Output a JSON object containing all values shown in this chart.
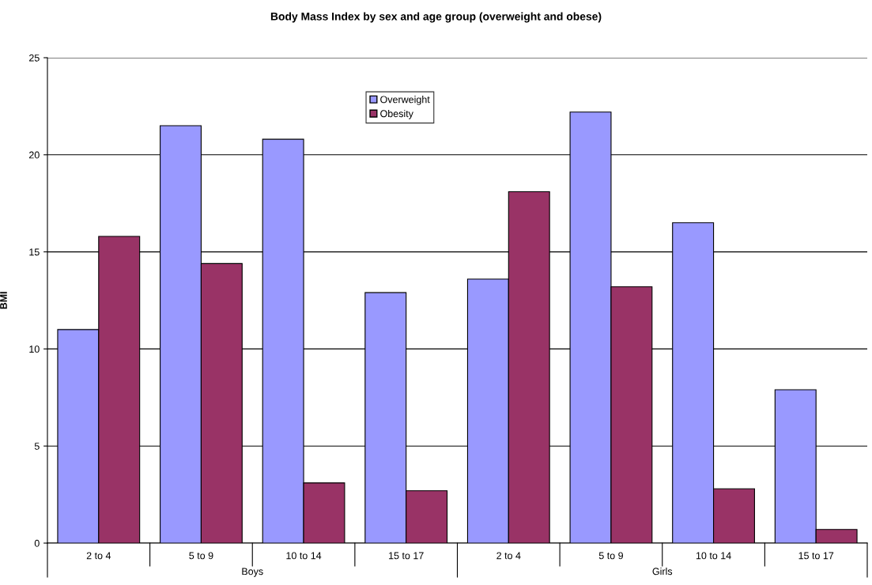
{
  "chart_data": {
    "type": "bar",
    "title": "Body Mass Index by sex and age group (overweight and obese)",
    "ylabel": "BMI",
    "categories": [
      "2 to 4",
      "5 to 9",
      "10 to 14",
      "15 to 17",
      "2 to 4",
      "5 to 9",
      "10 to 14",
      "15 to 17"
    ],
    "series": [
      {
        "name": "Overweight",
        "color": "#9999ff",
        "values": [
          11.0,
          21.5,
          20.8,
          12.9,
          13.6,
          22.2,
          16.5,
          7.9
        ]
      },
      {
        "name": "Obesity",
        "color": "#993366",
        "values": [
          15.8,
          14.4,
          3.1,
          2.7,
          18.1,
          13.2,
          2.8,
          0.7
        ]
      }
    ],
    "annotations": [
      "Boys",
      "Girls"
    ],
    "ylim": [
      0,
      25
    ],
    "yticks": [
      0,
      5,
      10,
      15,
      20,
      25
    ],
    "grid": "y",
    "legend": "top"
  }
}
